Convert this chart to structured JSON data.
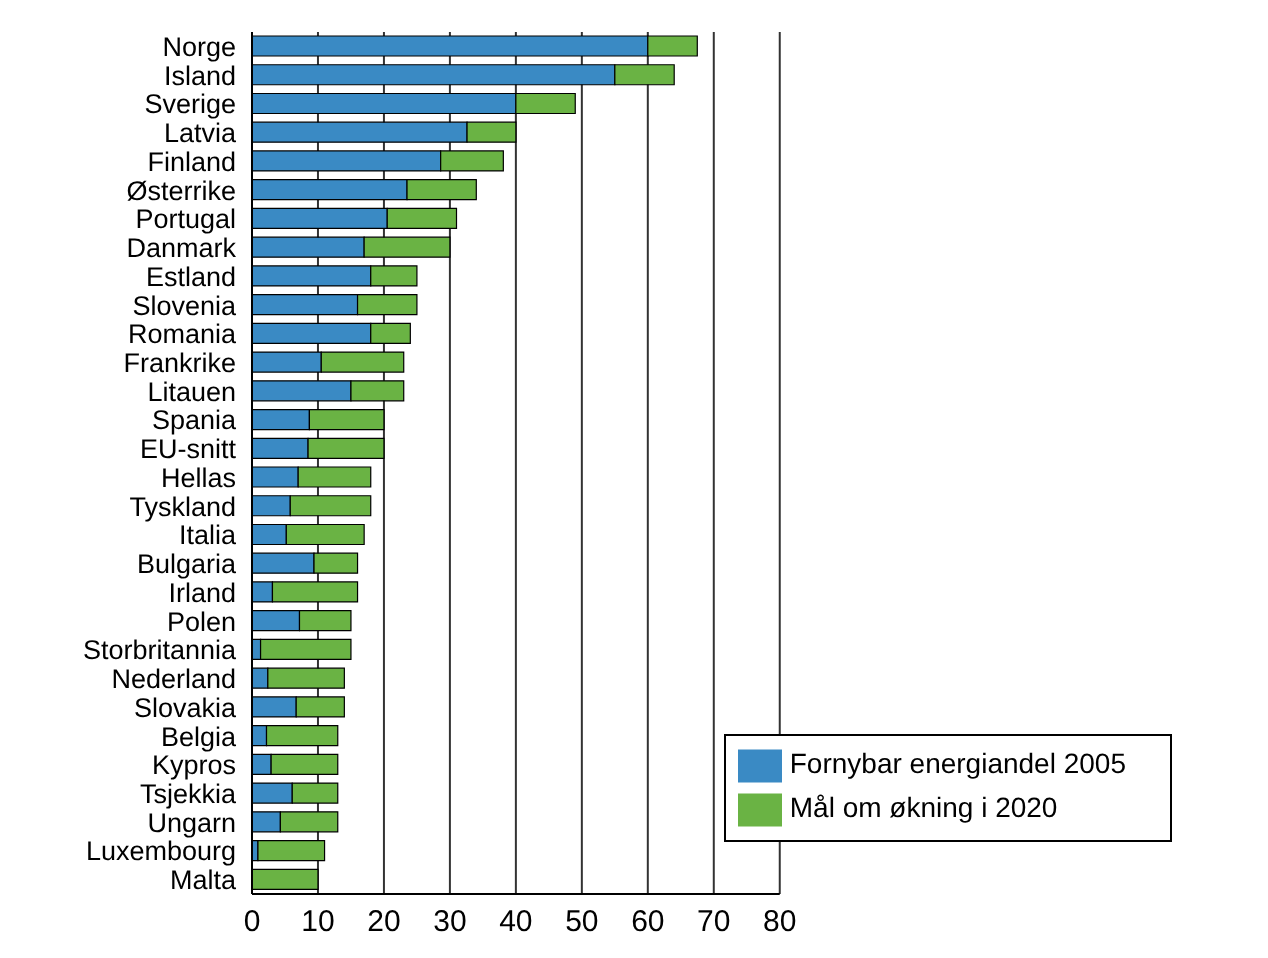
{
  "chart_data": {
    "type": "bar",
    "orientation": "horizontal",
    "stacked": true,
    "categories": [
      "Norge",
      "Island",
      "Sverige",
      "Latvia",
      "Finland",
      "Østerrike",
      "Portugal",
      "Danmark",
      "Estland",
      "Slovenia",
      "Romania",
      "Frankrike",
      "Litauen",
      "Spania",
      "EU-snitt",
      "Hellas",
      "Tyskland",
      "Italia",
      "Bulgaria",
      "Irland",
      "Polen",
      "Storbritannia",
      "Nederland",
      "Slovakia",
      "Belgia",
      "Kypros",
      "Tsjekkia",
      "Ungarn",
      "Luxembourg",
      "Malta"
    ],
    "series": [
      {
        "name": "Fornybar energiandel 2005",
        "color": "#3a8ac4",
        "values": [
          60,
          55,
          40,
          32.6,
          28.6,
          23.5,
          20.5,
          17,
          18,
          16,
          18,
          10.5,
          15,
          8.7,
          8.5,
          7,
          5.8,
          5.2,
          9.4,
          3.1,
          7.2,
          1.3,
          2.4,
          6.7,
          2.2,
          2.9,
          6.1,
          4.3,
          0.9,
          0
        ]
      },
      {
        "name": "Mål om økning i 2020",
        "color": "#6ab344",
        "values": [
          7.5,
          9,
          9,
          7.4,
          9.5,
          10.5,
          10.5,
          13,
          7,
          9,
          6,
          12.5,
          8,
          11.3,
          11.5,
          11,
          12.2,
          11.8,
          6.6,
          12.9,
          7.8,
          13.7,
          11.6,
          7.3,
          10.8,
          10.1,
          6.9,
          8.7,
          10.1,
          10
        ]
      }
    ],
    "xlim": [
      0,
      80
    ],
    "xticks": [
      0,
      10,
      20,
      30,
      40,
      50,
      60,
      70,
      80
    ],
    "grid": "x",
    "legend": "bottom right"
  }
}
